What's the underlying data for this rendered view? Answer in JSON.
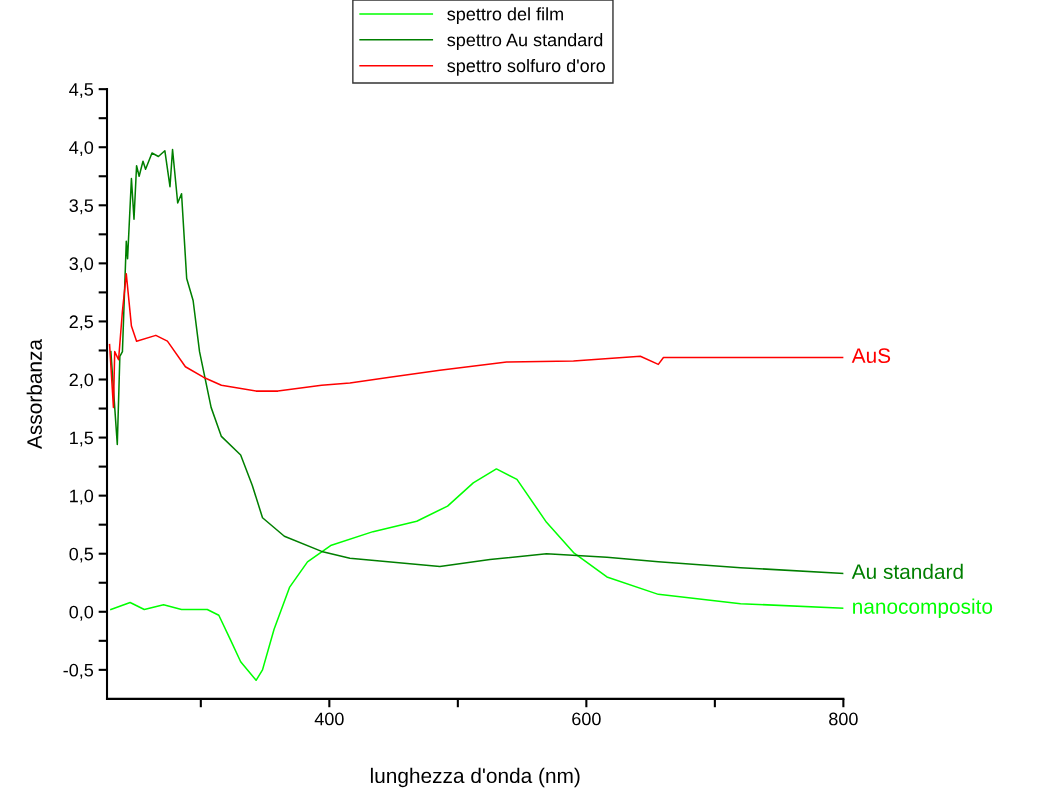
{
  "chart_data": {
    "type": "line",
    "xlabel": "lunghezza d'onda (nm)",
    "ylabel": "Assorbanza",
    "xlim": [
      227,
      800
    ],
    "ylim": [
      -0.75,
      4.5
    ],
    "xticks": [
      {
        "value": 300,
        "label": null
      },
      400,
      {
        "value": 500,
        "label": null
      },
      600,
      {
        "value": 700,
        "label": null
      },
      800
    ],
    "yticks": [
      {
        "value": -0.5,
        "label": "-0,5"
      },
      {
        "value": -0.25,
        "label": null
      },
      {
        "value": 0,
        "label": "0,0"
      },
      {
        "value": 0.25,
        "label": null
      },
      {
        "value": 0.5,
        "label": "0,5"
      },
      {
        "value": 0.75,
        "label": null
      },
      {
        "value": 1,
        "label": "1,0"
      },
      {
        "value": 1.25,
        "label": null
      },
      {
        "value": 1.5,
        "label": "1,5"
      },
      {
        "value": 1.75,
        "label": null
      },
      {
        "value": 2,
        "label": "2,0"
      },
      {
        "value": 2.25,
        "label": null
      },
      {
        "value": 2.5,
        "label": "2,5"
      },
      {
        "value": 2.75,
        "label": null
      },
      {
        "value": 3,
        "label": "3,0"
      },
      {
        "value": 3.25,
        "label": null
      },
      {
        "value": 3.5,
        "label": "3,5"
      },
      {
        "value": 3.75,
        "label": null
      },
      {
        "value": 4,
        "label": "4,0"
      },
      {
        "value": 4.25,
        "label": null
      },
      {
        "value": 4.5,
        "label": "4,5"
      }
    ],
    "grid": false,
    "legend": "top",
    "marker": "none",
    "line_style": "solid",
    "series": [
      {
        "name": "spettro del film",
        "color": "#00ff00",
        "x": [
          230,
          245,
          256,
          271,
          285,
          305,
          314,
          323,
          331,
          343,
          348,
          357,
          369,
          383,
          401,
          434,
          468,
          492,
          512,
          530,
          546,
          569,
          590,
          616,
          656,
          720,
          800
        ],
        "values": [
          0.02,
          0.08,
          0.02,
          0.06,
          0.02,
          0.02,
          -0.03,
          -0.24,
          -0.43,
          -0.59,
          -0.5,
          -0.15,
          0.21,
          0.43,
          0.57,
          0.69,
          0.78,
          0.91,
          1.11,
          1.23,
          1.14,
          0.77,
          0.51,
          0.3,
          0.15,
          0.07,
          0.03
        ]
      },
      {
        "name": "spettro Au standard",
        "color": "#007f00",
        "x": [
          230,
          235,
          237,
          239,
          242,
          243,
          246,
          248,
          250,
          252,
          255,
          257,
          262,
          267,
          272,
          276,
          278,
          282,
          285,
          289,
          294,
          299,
          308,
          316,
          331,
          340,
          348,
          365,
          394,
          416,
          486,
          525,
          569,
          616,
          656,
          720,
          800
        ],
        "values": [
          2.24,
          1.44,
          2.2,
          2.24,
          3.19,
          3.04,
          3.73,
          3.38,
          3.84,
          3.75,
          3.88,
          3.81,
          3.95,
          3.92,
          3.97,
          3.66,
          3.98,
          3.52,
          3.6,
          2.87,
          2.68,
          2.24,
          1.76,
          1.51,
          1.35,
          1.09,
          0.81,
          0.65,
          0.52,
          0.46,
          0.39,
          0.45,
          0.5,
          0.47,
          0.43,
          0.38,
          0.33
        ]
      },
      {
        "name": "spettro solfuro d'oro",
        "color": "#ff0000",
        "x": [
          229,
          232,
          233,
          236,
          239,
          242,
          246,
          250,
          265,
          274,
          288,
          302,
          316,
          343,
          360,
          394,
          416,
          447,
          486,
          538,
          590,
          642,
          656,
          660,
          720,
          800
        ],
        "values": [
          2.3,
          1.76,
          2.24,
          2.17,
          2.59,
          2.91,
          2.46,
          2.33,
          2.38,
          2.33,
          2.11,
          2.02,
          1.95,
          1.9,
          1.9,
          1.95,
          1.97,
          2.02,
          2.08,
          2.15,
          2.16,
          2.2,
          2.13,
          2.19,
          2.19,
          2.19
        ]
      }
    ],
    "annotations": [
      "nanocomposito",
      "Au standard",
      "AuS"
    ]
  }
}
